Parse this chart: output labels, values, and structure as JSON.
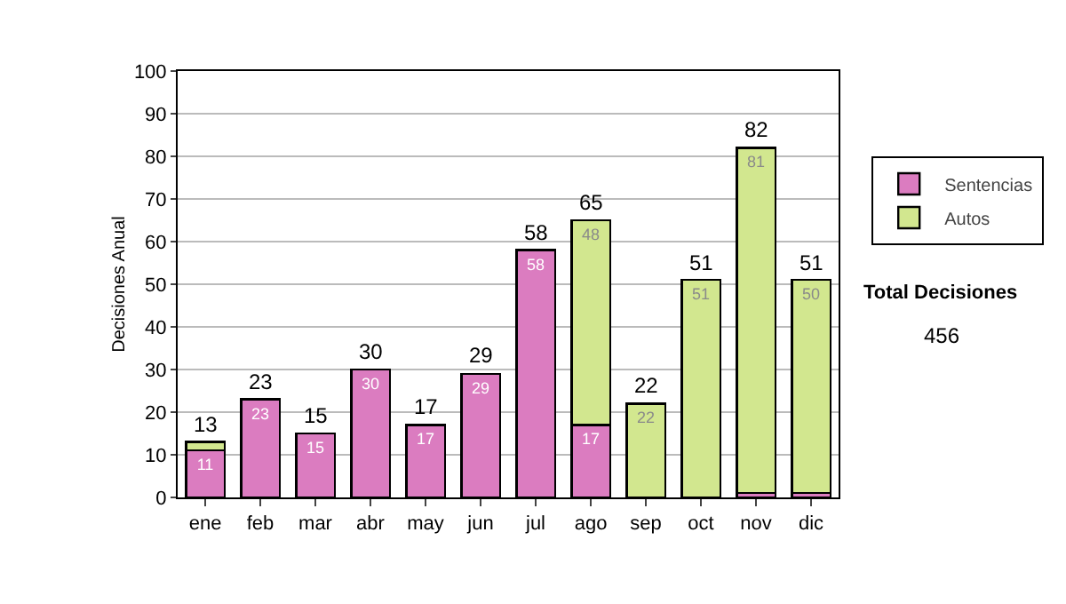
{
  "chart_data": {
    "type": "bar",
    "stacked": true,
    "ylabel": "Decisiones Anual",
    "categories": [
      "ene",
      "feb",
      "mar",
      "abr",
      "may",
      "jun",
      "jul",
      "ago",
      "sep",
      "oct",
      "nov",
      "dic"
    ],
    "series": [
      {
        "name": "Sentencias",
        "color": "#db7cc0",
        "values": [
          11,
          23,
          15,
          30,
          17,
          29,
          58,
          17,
          0,
          0,
          1,
          1
        ],
        "value_labels": [
          "11",
          "23",
          "15",
          "30",
          "17",
          "29",
          "58",
          "17",
          null,
          null,
          null,
          null
        ]
      },
      {
        "name": "Autos",
        "color": "#d2e78f",
        "values": [
          2,
          0,
          0,
          0,
          0,
          0,
          0,
          48,
          22,
          51,
          81,
          50
        ],
        "value_labels": [
          null,
          null,
          null,
          null,
          null,
          null,
          null,
          "48",
          "22",
          "51",
          "81",
          "50"
        ]
      }
    ],
    "totals": [
      "13",
      "23",
      "15",
      "30",
      "17",
      "29",
      "58",
      "65",
      "22",
      "51",
      "82",
      "51"
    ],
    "ylim": [
      0,
      100
    ],
    "yticks": [
      0,
      10,
      20,
      30,
      40,
      50,
      60,
      70,
      80,
      90,
      100
    ],
    "grid": "y",
    "legend": "right",
    "annotations": [
      "Total Decisiones",
      "456"
    ]
  }
}
